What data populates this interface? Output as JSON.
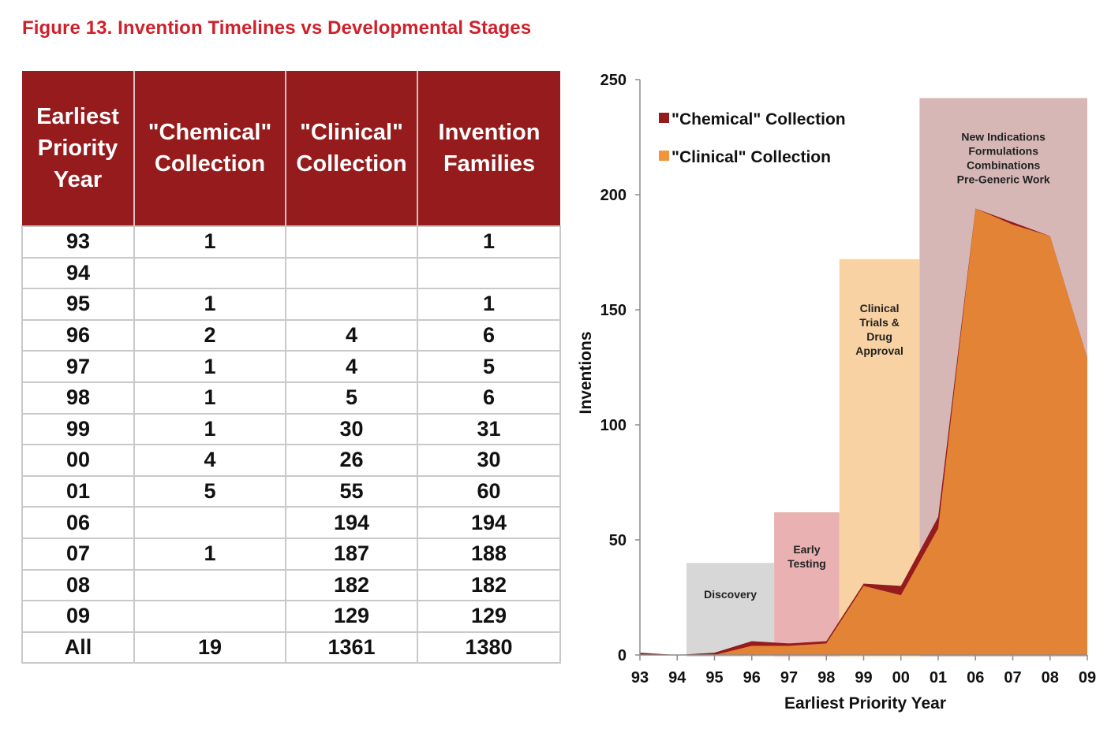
{
  "figure_title": "Figure 13. Invention Timelines vs Developmental Stages",
  "table": {
    "headers": [
      [
        "Earliest",
        "Priority",
        "Year"
      ],
      [
        "\"Chemical\"",
        "Collection"
      ],
      [
        "\"Clinical\"",
        "Collection"
      ],
      [
        "Invention",
        "Families"
      ]
    ],
    "rows": [
      [
        "93",
        "1",
        "",
        "1"
      ],
      [
        "94",
        "",
        "",
        ""
      ],
      [
        "95",
        "1",
        "",
        "1"
      ],
      [
        "96",
        "2",
        "4",
        "6"
      ],
      [
        "97",
        "1",
        "4",
        "5"
      ],
      [
        "98",
        "1",
        "5",
        "6"
      ],
      [
        "99",
        "1",
        "30",
        "31"
      ],
      [
        "00",
        "4",
        "26",
        "30"
      ],
      [
        "01",
        "5",
        "55",
        "60"
      ],
      [
        "06",
        "",
        "194",
        "194"
      ],
      [
        "07",
        "1",
        "187",
        "188"
      ],
      [
        "08",
        "",
        "182",
        "182"
      ],
      [
        "09",
        "",
        "129",
        "129"
      ],
      [
        "All",
        "19",
        "1361",
        "1380"
      ]
    ]
  },
  "chart_data": {
    "type": "area",
    "xlabel": "Earliest Priority Year",
    "ylabel": "Inventions",
    "categories": [
      "93",
      "94",
      "95",
      "96",
      "97",
      "98",
      "99",
      "00",
      "01",
      "06",
      "07",
      "08",
      "09"
    ],
    "ylim": [
      0,
      250
    ],
    "yticks": [
      0,
      50,
      100,
      150,
      200,
      250
    ],
    "series": [
      {
        "name": "\"Chemical\"  Collection",
        "color": "#951b1c",
        "values": [
          1,
          0,
          1,
          6,
          5,
          6,
          31,
          30,
          60,
          194,
          188,
          182,
          129
        ]
      },
      {
        "name": "\"Clinical\"  Collection",
        "color": "#f0953a",
        "values": [
          0,
          0,
          0,
          4,
          4,
          5,
          30,
          26,
          55,
          194,
          187,
          182,
          129
        ]
      }
    ],
    "stages": [
      {
        "lines": [
          "Discovery"
        ],
        "x_start": "94",
        "x_end": "97",
        "x_start_offset": 0.25,
        "x_end_offset": -0.4,
        "height": 40,
        "color": "#d7d7d7"
      },
      {
        "lines": [
          "Early",
          "Testing"
        ],
        "x_start": "97",
        "x_end": "98",
        "x_start_offset": -0.4,
        "x_end_offset": 0.35,
        "height": 62,
        "color": "#e9b1b2"
      },
      {
        "lines": [
          "Clinical",
          "Trials &",
          "Drug",
          "Approval"
        ],
        "x_start": "98",
        "x_end": "01",
        "x_start_offset": 0.35,
        "x_end_offset": -0.5,
        "height": 172,
        "color": "#f8d2a2"
      },
      {
        "lines": [
          "New Indications",
          "Formulations",
          "Combinations",
          "Pre-Generic Work"
        ],
        "x_start": "01",
        "x_end": "09",
        "x_start_offset": -0.5,
        "x_end_offset": 0,
        "height": 242,
        "color": "#d6b7b6"
      }
    ],
    "legend_position": "top-left",
    "grid": false
  }
}
